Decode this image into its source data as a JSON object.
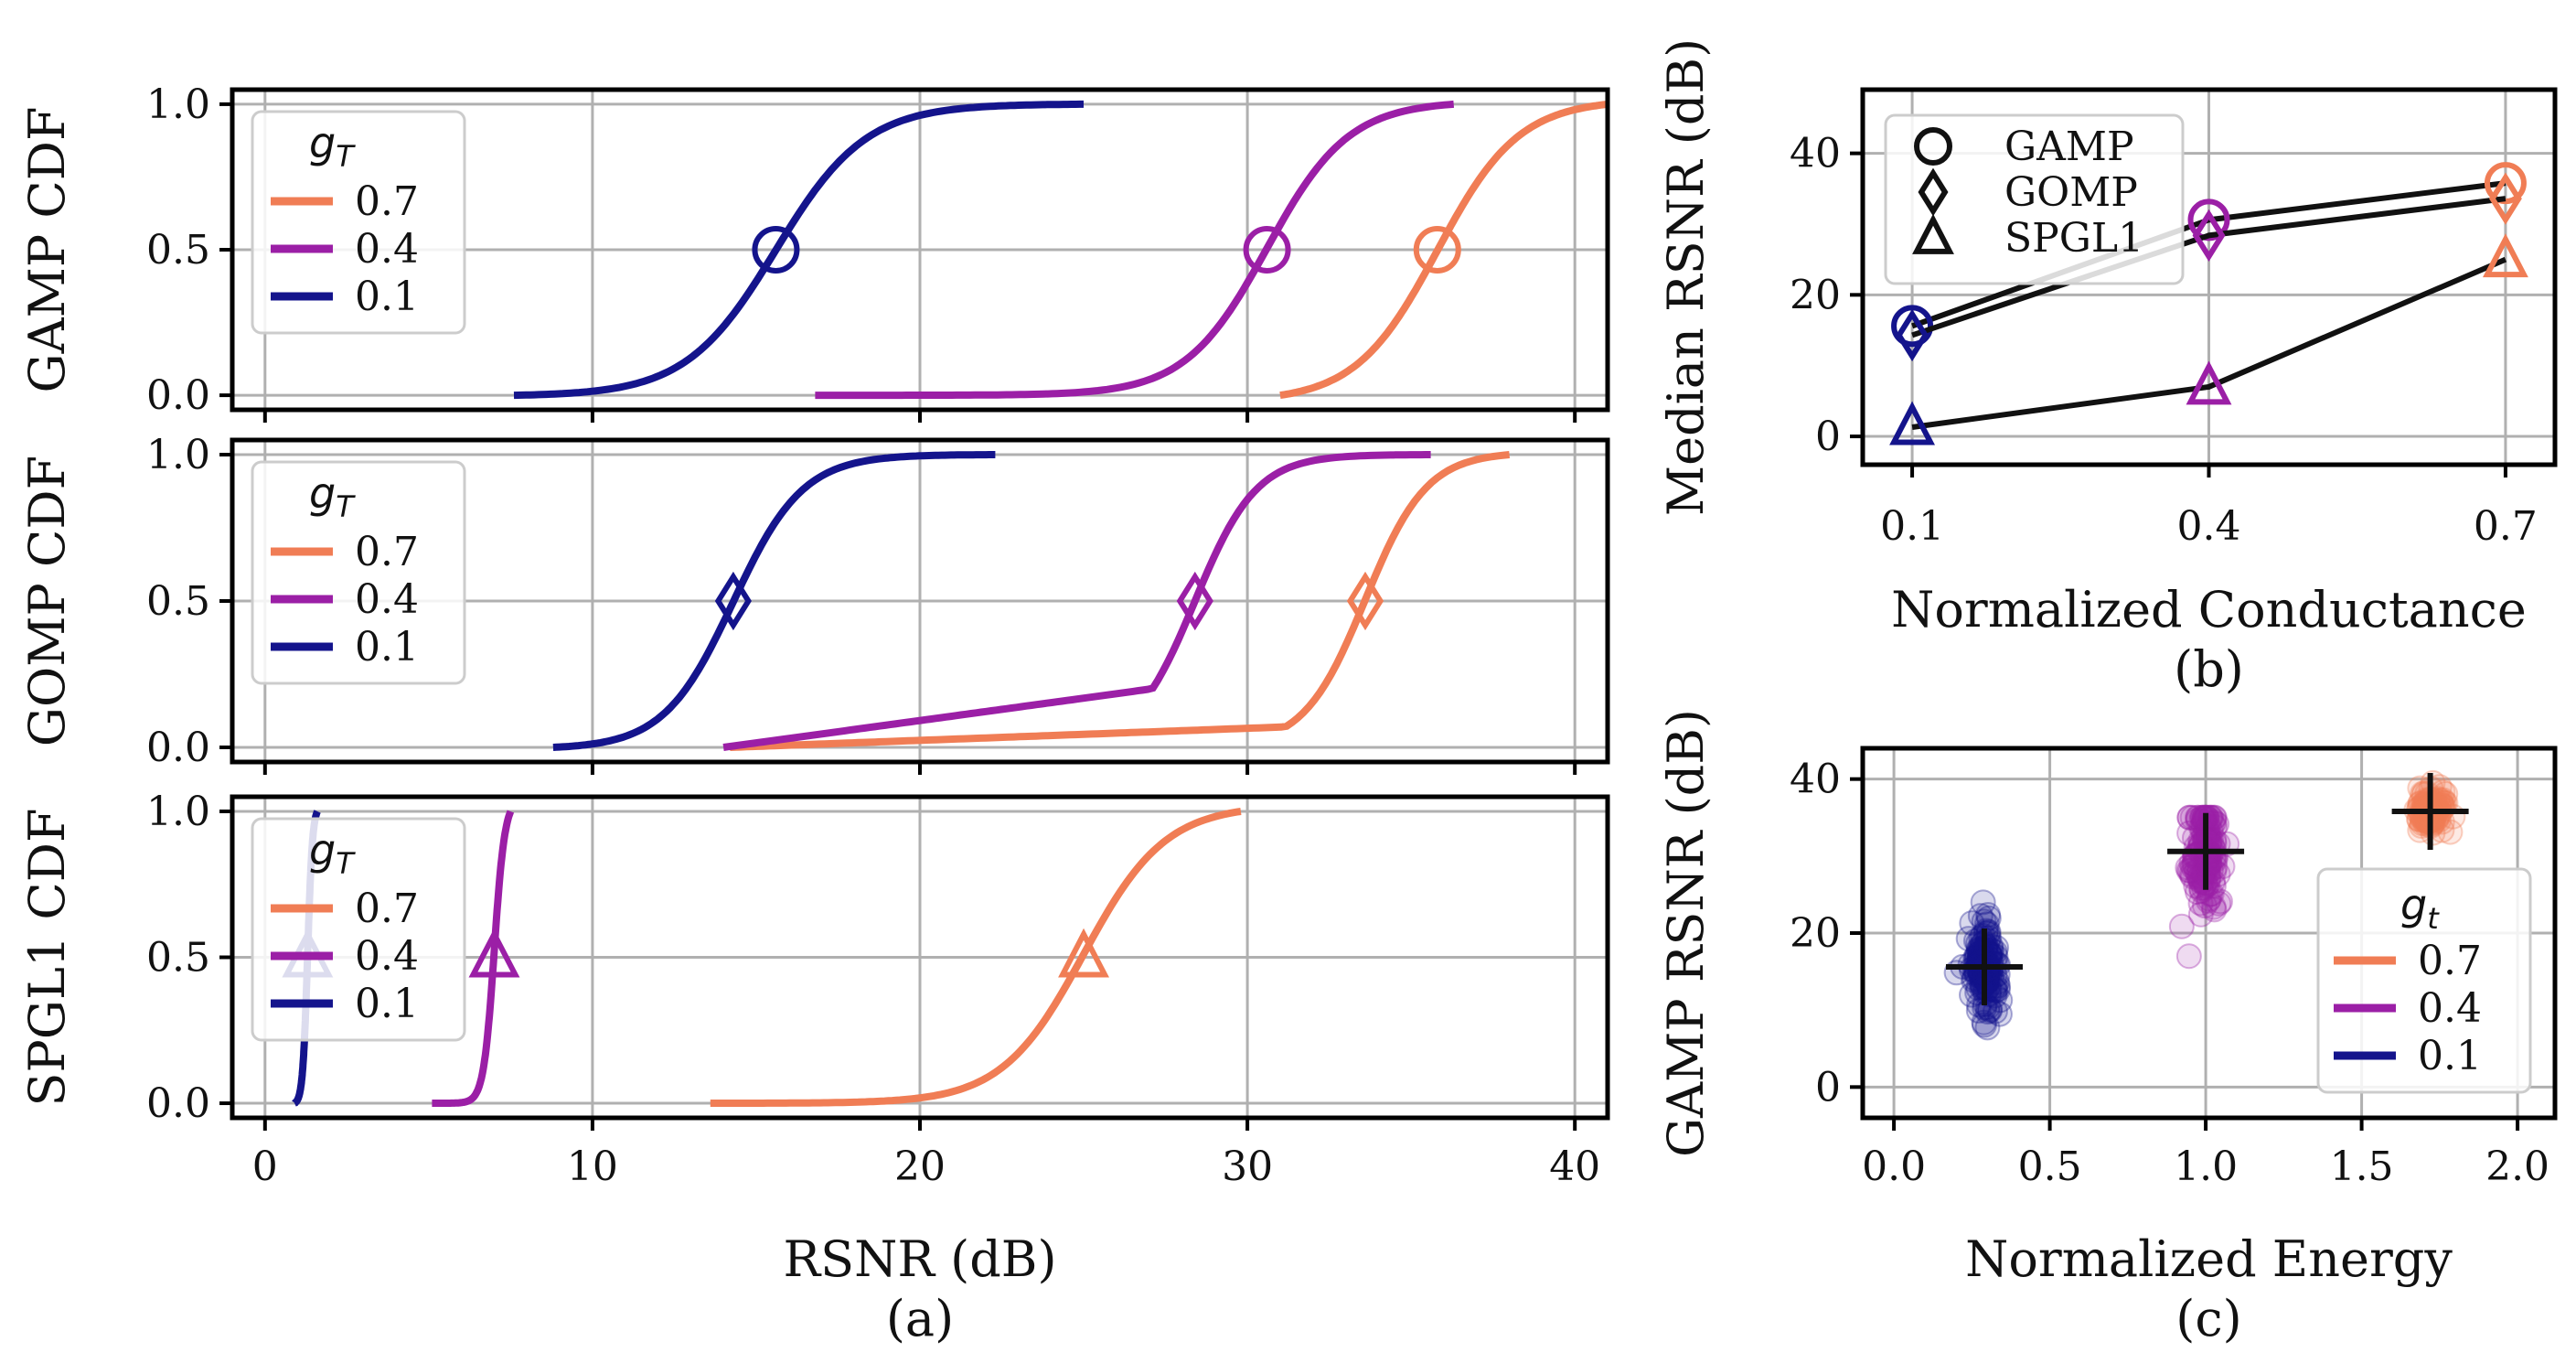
{
  "colors": {
    "g07": "#f07d55",
    "g04": "#9b1fa6",
    "g01": "#14148c",
    "grid": "#b0b0b0",
    "marker_black": "#111111"
  },
  "chart_data": [
    {
      "id": "a",
      "type": "line",
      "caption": "(a)",
      "xlabel": "RSNR (dB)",
      "xlim": [
        -1,
        41
      ],
      "xticks": [
        0,
        10,
        20,
        30,
        40
      ],
      "ylim": [
        -0.05,
        1.05
      ],
      "yticks": [
        "0.0",
        "0.5",
        "1.0"
      ],
      "grid": true,
      "legend": {
        "title": "g_T",
        "placement": "upper-left",
        "entries": [
          "0.7",
          "0.4",
          "0.1"
        ]
      },
      "panels": [
        {
          "ylabel": "GAMP CDF",
          "marker": "circle",
          "series": [
            {
              "name": "0.7",
              "color": "g07",
              "median": 35.8,
              "x0": 31.0,
              "x1": 41.0,
              "xlo": 31,
              "xhi": 41
            },
            {
              "name": "0.4",
              "color": "g04",
              "median": 30.6,
              "x0": 16.8,
              "x1": 36.3,
              "xlo": 25.5,
              "xhi": 35.5
            },
            {
              "name": "0.1",
              "color": "g01",
              "median": 15.6,
              "x0": 7.6,
              "x1": 25.0,
              "xlo": 10.0,
              "xhi": 21.0
            }
          ]
        },
        {
          "ylabel": "GOMP CDF",
          "marker": "diamond",
          "series": [
            {
              "name": "0.7",
              "color": "g07",
              "median": 33.6,
              "x0": 14.2,
              "x1": 38.0,
              "xlo": 29.5,
              "xhi": 37.0
            },
            {
              "name": "0.4",
              "color": "g04",
              "median": 28.4,
              "x0": 14.0,
              "x1": 35.6,
              "xlo": 24.5,
              "xhi": 32.0
            },
            {
              "name": "0.1",
              "color": "g01",
              "median": 14.3,
              "x0": 8.8,
              "x1": 22.3,
              "xlo": 10.5,
              "xhi": 19.0
            }
          ]
        },
        {
          "ylabel": "SPGL1 CDF",
          "marker": "triangle",
          "series": [
            {
              "name": "0.7",
              "color": "g07",
              "median": 25.0,
              "x0": 13.6,
              "x1": 29.8,
              "xlo": 19.5,
              "xhi": 29.5
            },
            {
              "name": "0.4",
              "color": "g04",
              "median": 7.0,
              "x0": 5.1,
              "x1": 7.5,
              "xlo": 6.2,
              "xhi": 7.5
            },
            {
              "name": "0.1",
              "color": "g01",
              "median": 1.3,
              "x0": 0.9,
              "x1": 1.6,
              "xlo": 1.0,
              "xhi": 1.6
            }
          ]
        }
      ]
    },
    {
      "id": "b",
      "type": "line",
      "caption": "(b)",
      "xlabel": "Normalized Conductance",
      "ylabel": "Median RSNR (dB)",
      "categories": [
        "0.1",
        "0.4",
        "0.7"
      ],
      "ylim": [
        -4,
        49
      ],
      "yticks": [
        0,
        20,
        40
      ],
      "grid": true,
      "legend": {
        "placement": "upper-left",
        "entries": [
          "GAMP",
          "GOMP",
          "SPGL1"
        ]
      },
      "series": [
        {
          "name": "GAMP",
          "marker": "circle",
          "values": [
            15.6,
            30.6,
            35.8
          ]
        },
        {
          "name": "GOMP",
          "marker": "diamond",
          "values": [
            14.3,
            28.4,
            33.6
          ]
        },
        {
          "name": "SPGL1",
          "marker": "triangle",
          "values": [
            1.3,
            7.0,
            25.0
          ]
        }
      ]
    },
    {
      "id": "c",
      "type": "scatter",
      "caption": "(c)",
      "xlabel": "Normalized Energy",
      "ylabel": "GAMP RSNR (dB)",
      "xlim": [
        -0.1,
        2.12
      ],
      "xticks": [
        "0.0",
        "0.5",
        "1.0",
        "1.5",
        "2.0"
      ],
      "ylim": [
        -4,
        44
      ],
      "yticks": [
        0,
        20,
        40
      ],
      "grid": true,
      "legend": {
        "title": "g_t",
        "placement": "lower-right",
        "entries": [
          "0.7",
          "0.4",
          "0.1"
        ]
      },
      "series": [
        {
          "name": "0.7",
          "color": "g07",
          "energy": 1.72,
          "median": 35.8,
          "ymin": 33.0,
          "ymax": 39.5
        },
        {
          "name": "0.4",
          "color": "g04",
          "energy": 1.0,
          "median": 30.6,
          "ymin": 17.0,
          "ymax": 35.0
        },
        {
          "name": "0.1",
          "color": "g01",
          "energy": 0.29,
          "median": 15.6,
          "ymin": 7.5,
          "ymax": 24.0
        }
      ]
    }
  ]
}
